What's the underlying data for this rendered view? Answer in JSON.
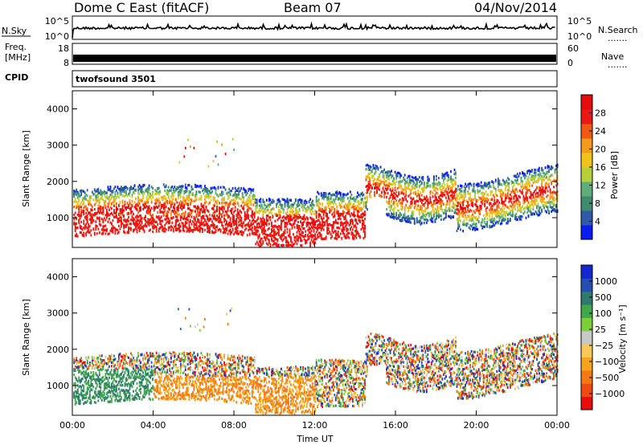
{
  "header": {
    "station": "Dome C East (fitACF)",
    "beam": "Beam 07",
    "date": "04/Nov/2014"
  },
  "top_panels": {
    "nsky_label": "N.Sky",
    "nsky_ticks": [
      "10^5",
      "10^0"
    ],
    "nsearch_label": "N.Search",
    "nsearch_ticks": [
      "10^5",
      "10^0"
    ],
    "freq_label": "Freq.",
    "freq_unit": "[MHz]",
    "freq_ticks": [
      "18",
      "8"
    ],
    "nave_label": "Nave",
    "nave_ticks": [
      "60",
      "0"
    ],
    "cpid_label": "CPID",
    "cpid_value": "twofsound 3501",
    "dots": "......."
  },
  "colors": {
    "power": [
      "#0a1cf0",
      "#2e5aa8",
      "#3f8b6e",
      "#5fae7a",
      "#b6cf3a",
      "#f2c21c",
      "#f59a1a",
      "#ee5a14",
      "#e81a12",
      "#e40c0c"
    ],
    "velocity": [
      "#e80c0c",
      "#ee4a12",
      "#f27a16",
      "#f5a41c",
      "#f8c858",
      "#c8c8c8",
      "#7ccf3a",
      "#3fa84c",
      "#2f7a6e",
      "#244fb0",
      "#1428d0"
    ]
  },
  "chart_data": [
    {
      "type": "heatmap",
      "name": "power",
      "ylabel": "Slant Range [km]",
      "xlabel": "",
      "yticks": [
        "1000",
        "2000",
        "3000",
        "4000"
      ],
      "ylim": [
        180,
        4500
      ],
      "xlim_hours": [
        0,
        24
      ],
      "colorbar_label": "Power [dB]",
      "colorbar_ticks": [
        "4",
        "8",
        "12",
        "16",
        "20",
        "24",
        "28"
      ],
      "colorbar_range": [
        0,
        30
      ]
    },
    {
      "type": "heatmap",
      "name": "velocity",
      "ylabel": "Slant Range [km]",
      "xlabel": "Time UT",
      "xticks": [
        "00:00",
        "04:00",
        "08:00",
        "12:00",
        "16:00",
        "20:00",
        "00:00"
      ],
      "yticks": [
        "1000",
        "2000",
        "3000",
        "4000"
      ],
      "ylim": [
        180,
        4500
      ],
      "xlim_hours": [
        0,
        24
      ],
      "colorbar_label": "Velocity [m s⁻¹]",
      "colorbar_ticks": [
        "1000",
        "500",
        "100",
        "25",
        "−25",
        "−100",
        "−500",
        "−1000"
      ]
    }
  ]
}
